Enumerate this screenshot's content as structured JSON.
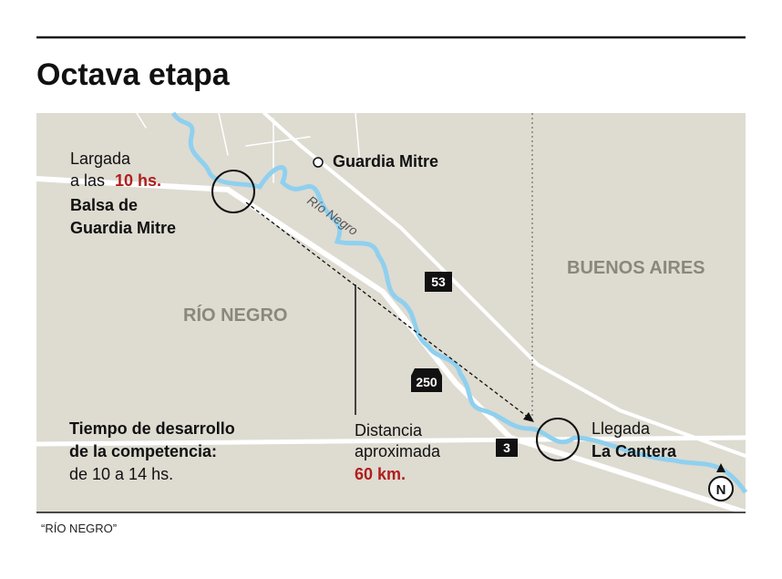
{
  "header": {
    "title": "Octava etapa"
  },
  "map": {
    "start": {
      "line1": "Largada",
      "line2a": "a las",
      "line2b": "10 hs.",
      "line3": "Balsa de",
      "line4": "Guardia Mitre"
    },
    "town": "Guardia Mitre",
    "river": "Río Negro",
    "province_west": "RÍO NEGRO",
    "province_east": "BUENOS AIRES",
    "routes": [
      "53",
      "250",
      "3"
    ],
    "duration": {
      "line1": "Tiempo de desarrollo",
      "line2": "de la competencia:",
      "line3": "de 10 a 14 hs."
    },
    "distance": {
      "line1": "Distancia",
      "line2": "aproximada",
      "line3": "60 km."
    },
    "finish": {
      "line1": "Llegada",
      "line2": "La Cantera"
    },
    "north": "N"
  },
  "footer": {
    "source": "“RÍO NEGRO”"
  }
}
